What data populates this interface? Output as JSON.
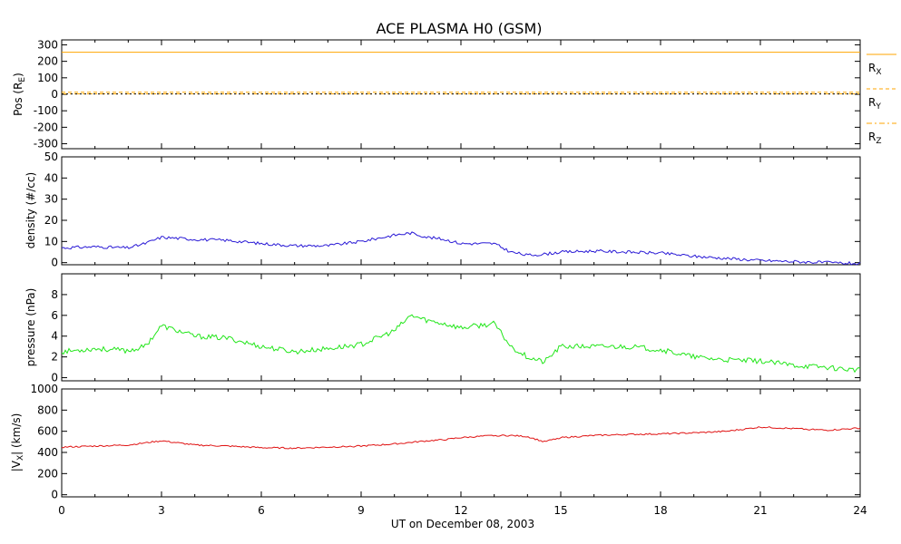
{
  "title": "ACE PLASMA H0 (GSM)",
  "xaxis": {
    "label": "UT on December 08, 2003",
    "range": [
      0,
      24
    ],
    "ticks": [
      "0",
      "3",
      "6",
      "9",
      "12",
      "15",
      "18",
      "21",
      "24"
    ]
  },
  "panels": {
    "pos": {
      "ylabel_main": "Pos (R",
      "ylabel_sub": "E",
      "ylabel_end": ")",
      "ylim": [
        -330,
        330
      ],
      "ticks": [
        "300",
        "200",
        "100",
        "0",
        "-100",
        "-200",
        "-300"
      ],
      "legend": [
        {
          "main": "R",
          "sub": "X",
          "style": "solid"
        },
        {
          "main": "R",
          "sub": "Y",
          "style": "dashed"
        },
        {
          "main": "R",
          "sub": "Z",
          "style": "dashdot"
        }
      ]
    },
    "density": {
      "ylabel": "density (#/cc)",
      "ylim": [
        -1,
        50
      ],
      "ticks": [
        "50",
        "40",
        "30",
        "20",
        "10",
        "0"
      ]
    },
    "pressure": {
      "ylabel": "pressure (nPa)",
      "ylim": [
        -0.3,
        10
      ],
      "ticks": [
        "8",
        "6",
        "4",
        "2",
        "0"
      ]
    },
    "vx": {
      "ylabel_pre": "|V",
      "ylabel_sub": "X",
      "ylabel_end": "| (km/s)",
      "ylim": [
        -20,
        1000
      ],
      "ticks": [
        "1000",
        "800",
        "600",
        "400",
        "200",
        "0"
      ]
    }
  },
  "colors": {
    "pos": "#ffa500",
    "density": "#2a1ad6",
    "pressure": "#22e61a",
    "vx": "#e01414"
  },
  "chart_data": {
    "type": "line",
    "title": "ACE PLASMA H0 (GSM)",
    "xlabel": "UT on December 08, 2003",
    "x": [
      0,
      1,
      2,
      2.5,
      3,
      4,
      5,
      6,
      7,
      8,
      9,
      10,
      10.5,
      11,
      11.5,
      12,
      13,
      13.5,
      14,
      14.5,
      15,
      16,
      17,
      18,
      19,
      20,
      21,
      22,
      23,
      24
    ],
    "series": [
      {
        "name": "R_X",
        "panel": "pos",
        "values": [
          255,
          255,
          255,
          255,
          255,
          255,
          255,
          255,
          255,
          255,
          255,
          255,
          255,
          255,
          255,
          255,
          255,
          255,
          255,
          255,
          255,
          255,
          255,
          255,
          255,
          255,
          255,
          255,
          255,
          255
        ]
      },
      {
        "name": "R_Y",
        "panel": "pos",
        "values": [
          12,
          12,
          12,
          12,
          12,
          12,
          12,
          12,
          12,
          12,
          12,
          12,
          12,
          12,
          12,
          12,
          12,
          12,
          12,
          12,
          12,
          12,
          12,
          12,
          12,
          12,
          12,
          12,
          12,
          12
        ]
      },
      {
        "name": "R_Z",
        "panel": "pos",
        "values": [
          3,
          3,
          3,
          3,
          3,
          3,
          3,
          3,
          3,
          3,
          3,
          3,
          3,
          3,
          3,
          3,
          3,
          3,
          3,
          3,
          3,
          3,
          3,
          3,
          3,
          3,
          3,
          3,
          3,
          3
        ]
      },
      {
        "name": "density",
        "panel": "density",
        "values": [
          7,
          7.5,
          7,
          9,
          12,
          11,
          10.5,
          9,
          8,
          8,
          10,
          13,
          14,
          12,
          11,
          9,
          9,
          5,
          3.5,
          4,
          5,
          5.5,
          5,
          4.5,
          3,
          2,
          1,
          0.5,
          0,
          -0.5
        ]
      },
      {
        "name": "pressure",
        "panel": "pressure",
        "values": [
          2.5,
          2.8,
          2.6,
          3,
          5,
          4,
          3.8,
          3,
          2.5,
          2.8,
          3.2,
          4.5,
          6,
          5.5,
          5.2,
          4.8,
          5.2,
          3,
          2,
          1.5,
          3,
          3,
          3,
          2.7,
          2,
          1.7,
          1.6,
          1.2,
          1,
          0.7
        ]
      },
      {
        "name": "|Vx|",
        "panel": "vx",
        "values": [
          450,
          460,
          470,
          490,
          510,
          470,
          460,
          445,
          440,
          450,
          460,
          480,
          495,
          510,
          520,
          540,
          560,
          560,
          550,
          500,
          540,
          560,
          570,
          575,
          585,
          600,
          640,
          625,
          610,
          630
        ]
      }
    ]
  }
}
